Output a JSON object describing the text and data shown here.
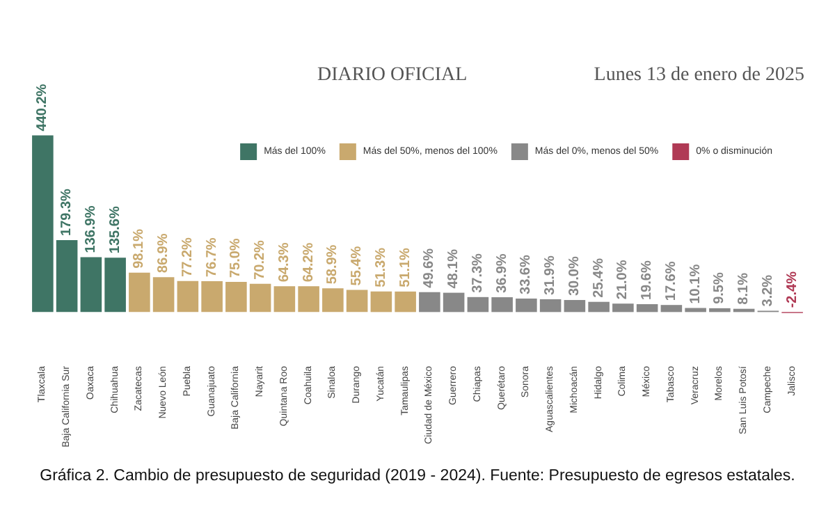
{
  "chart_data": {
    "type": "bar",
    "title": "Gráfica 2. Cambio de presupuesto de seguridad (2019 - 2024). Fuente: Presupuesto de egresos estatales.",
    "annotations": [
      "DIARIO OFICIAL",
      "Lunes 13 de enero de 2025"
    ],
    "categories": [
      "Tlaxcala",
      "Baja California Sur",
      "Oaxaca",
      "Chihuahua",
      "Zacatecas",
      "Nuevo León",
      "Puebla",
      "Guanajuato",
      "Baja California",
      "Nayarit",
      "Quintana Roo",
      "Coahuila",
      "Sinaloa",
      "Durango",
      "Yucatán",
      "Tamaulipas",
      "Ciudad de México",
      "Guerrero",
      "Chiapas",
      "Querétaro",
      "Sonora",
      "Aguascalientes",
      "Michoacán",
      "Hidalgo",
      "Colima",
      "México",
      "Tabasco",
      "Veracruz",
      "Morelos",
      "San Luis Potosí",
      "Campeche",
      "Jalisco"
    ],
    "series": [
      {
        "name": "Más del 100%",
        "color": "#3f7565",
        "values": [
          440.2,
          179.3,
          136.9,
          135.6,
          null,
          null,
          null,
          null,
          null,
          null,
          null,
          null,
          null,
          null,
          null,
          null,
          null,
          null,
          null,
          null,
          null,
          null,
          null,
          null,
          null,
          null,
          null,
          null,
          null,
          null,
          null,
          null
        ],
        "value_labels": [
          "440.2%",
          "179.3%",
          "136.9%",
          "135.6%",
          null,
          null,
          null,
          null,
          null,
          null,
          null,
          null,
          null,
          null,
          null,
          null,
          null,
          null,
          null,
          null,
          null,
          null,
          null,
          null,
          null,
          null,
          null,
          null,
          null,
          null,
          null,
          null
        ]
      },
      {
        "name": "Más del 50%, menos del 100%",
        "color": "#c9a96e",
        "values": [
          null,
          null,
          null,
          null,
          98.1,
          86.9,
          77.2,
          76.7,
          75.0,
          70.2,
          64.3,
          64.2,
          58.9,
          55.4,
          51.3,
          51.1,
          null,
          null,
          null,
          null,
          null,
          null,
          null,
          null,
          null,
          null,
          null,
          null,
          null,
          null,
          null,
          null
        ],
        "value_labels": [
          null,
          null,
          null,
          null,
          "98.1%",
          "86.9%",
          "77.2%",
          "76.7%",
          "75.0%",
          "70.2%",
          "64.3%",
          "64.2%",
          "58.9%",
          "55.4%",
          "51.3%",
          "51.1%",
          null,
          null,
          null,
          null,
          null,
          null,
          null,
          null,
          null,
          null,
          null,
          null,
          null,
          null,
          null,
          null
        ]
      },
      {
        "name": "Más del 0%, menos del 50%",
        "color": "#888888",
        "values": [
          null,
          null,
          null,
          null,
          null,
          null,
          null,
          null,
          null,
          null,
          null,
          null,
          null,
          null,
          null,
          null,
          49.6,
          48.1,
          37.3,
          36.9,
          33.6,
          31.9,
          30.0,
          25.4,
          21.0,
          19.6,
          17.6,
          10.1,
          9.5,
          8.1,
          3.2,
          null
        ],
        "value_labels": [
          null,
          null,
          null,
          null,
          null,
          null,
          null,
          null,
          null,
          null,
          null,
          null,
          null,
          null,
          null,
          null,
          "49.6%",
          "48.1%",
          "37.3%",
          "36.9%",
          "33.6%",
          "31.9%",
          "30.0%",
          "25.4%",
          "21.0%",
          "19.6%",
          "17.6%",
          "10.1%",
          "9.5%",
          "8.1%",
          "3.2%",
          null
        ]
      },
      {
        "name": "0% o disminución",
        "color": "#b03a55",
        "values": [
          null,
          null,
          null,
          null,
          null,
          null,
          null,
          null,
          null,
          null,
          null,
          null,
          null,
          null,
          null,
          null,
          null,
          null,
          null,
          null,
          null,
          null,
          null,
          null,
          null,
          null,
          null,
          null,
          null,
          null,
          null,
          -2.4
        ],
        "value_labels": [
          null,
          null,
          null,
          null,
          null,
          null,
          null,
          null,
          null,
          null,
          null,
          null,
          null,
          null,
          null,
          null,
          null,
          null,
          null,
          null,
          null,
          null,
          null,
          null,
          null,
          null,
          null,
          null,
          null,
          null,
          null,
          "-2.4%"
        ]
      }
    ],
    "legend": "top right",
    "grid": false,
    "tick_labels": "x"
  }
}
